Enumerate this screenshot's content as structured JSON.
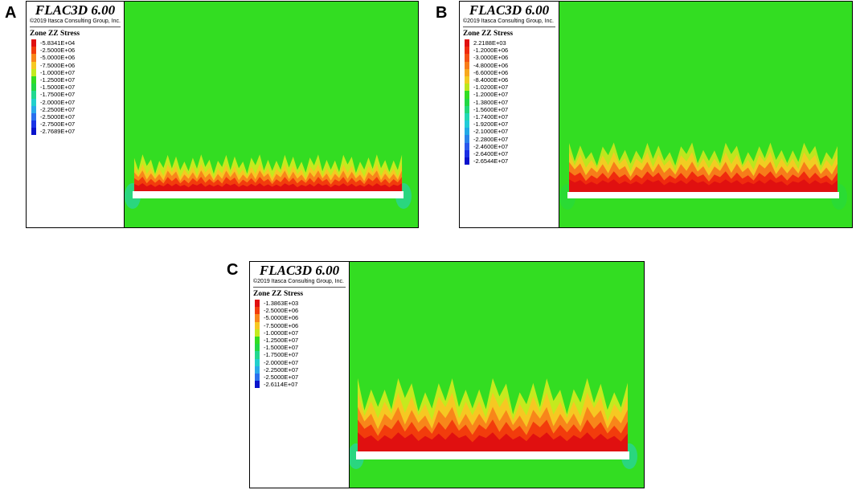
{
  "colors": {
    "background_green": "#33dd22",
    "plate_white": "#ffffff"
  },
  "panels": [
    {
      "letter": "A",
      "app_title": "FLAC3D 6.00",
      "copyright": "©2019 Itasca Consulting Group, Inc.",
      "legend_title": "Zone ZZ Stress",
      "legend": [
        {
          "label": "-5.8341E+04",
          "color": "#e01010"
        },
        {
          "label": "-2.5000E+06",
          "color": "#f23c0c"
        },
        {
          "label": "-5.0000E+06",
          "color": "#f8861a"
        },
        {
          "label": "-7.5000E+06",
          "color": "#f6c822"
        },
        {
          "label": "-1.0000E+07",
          "color": "#c4ea1e"
        },
        {
          "label": "-1.2500E+07",
          "color": "#33dd22"
        },
        {
          "label": "-1.5000E+07",
          "color": "#22d844"
        },
        {
          "label": "-1.7500E+07",
          "color": "#22d890"
        },
        {
          "label": "-2.0000E+07",
          "color": "#22d0cc"
        },
        {
          "label": "-2.2500E+07",
          "color": "#2aaaea"
        },
        {
          "label": "-2.5000E+07",
          "color": "#2a70ee"
        },
        {
          "label": "-2.7500E+07",
          "color": "#1a34e6"
        },
        {
          "label": "-2.7689E+07",
          "color": "#0a14cc"
        }
      ]
    },
    {
      "letter": "B",
      "app_title": "FLAC3D 6.00",
      "copyright": "©2019 Itasca Consulting Group, Inc.",
      "legend_title": "Zone ZZ Stress",
      "legend": [
        {
          "label": "2.2188E+03",
          "color": "#e01010"
        },
        {
          "label": "-1.2000E+06",
          "color": "#ef2a0e"
        },
        {
          "label": "-3.0000E+06",
          "color": "#f45014"
        },
        {
          "label": "-4.8000E+06",
          "color": "#f77c1a"
        },
        {
          "label": "-6.6000E+06",
          "color": "#f7a81e"
        },
        {
          "label": "-8.4000E+06",
          "color": "#f2cc22"
        },
        {
          "label": "-1.0200E+07",
          "color": "#bce61e"
        },
        {
          "label": "-1.2000E+07",
          "color": "#33dd22"
        },
        {
          "label": "-1.3800E+07",
          "color": "#22d844"
        },
        {
          "label": "-1.5600E+07",
          "color": "#22d87a"
        },
        {
          "label": "-1.7400E+07",
          "color": "#22d8b4"
        },
        {
          "label": "-1.9200E+07",
          "color": "#22ccd8"
        },
        {
          "label": "-2.1000E+07",
          "color": "#22aae6"
        },
        {
          "label": "-2.2800E+07",
          "color": "#2a84ea"
        },
        {
          "label": "-2.4600E+07",
          "color": "#2a58ec"
        },
        {
          "label": "-2.6400E+07",
          "color": "#1a2ee4"
        },
        {
          "label": "-2.6544E+07",
          "color": "#0a12cc"
        }
      ]
    },
    {
      "letter": "C",
      "app_title": "FLAC3D 6.00",
      "copyright": "©2019 Itasca Consulting Group, Inc.",
      "legend_title": "Zone ZZ Stress",
      "legend": [
        {
          "label": "-1.3863E+03",
          "color": "#e01010"
        },
        {
          "label": "-2.5000E+06",
          "color": "#f23c0c"
        },
        {
          "label": "-5.0000E+06",
          "color": "#f8861a"
        },
        {
          "label": "-7.5000E+06",
          "color": "#f6c822"
        },
        {
          "label": "-1.0000E+07",
          "color": "#c4ea1e"
        },
        {
          "label": "-1.2500E+07",
          "color": "#33dd22"
        },
        {
          "label": "-1.5000E+07",
          "color": "#22d844"
        },
        {
          "label": "-1.7500E+07",
          "color": "#22d890"
        },
        {
          "label": "-2.0000E+07",
          "color": "#22d0cc"
        },
        {
          "label": "-2.2500E+07",
          "color": "#2aaaea"
        },
        {
          "label": "-2.5000E+07",
          "color": "#2a70ee"
        },
        {
          "label": "-2.6114E+07",
          "color": "#0a14cc"
        }
      ]
    }
  ]
}
